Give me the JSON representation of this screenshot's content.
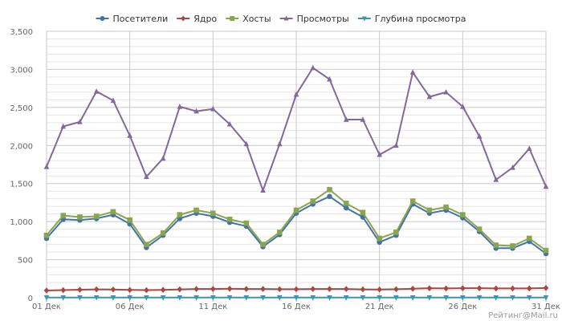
{
  "chart_data": {
    "type": "line",
    "x": [
      "01 Дек",
      "02 Дек",
      "03 Дек",
      "04 Дек",
      "05 Дек",
      "06 Дек",
      "07 Дек",
      "08 Дек",
      "09 Дек",
      "10 Дек",
      "11 Дек",
      "12 Дек",
      "13 Дек",
      "14 Дек",
      "15 Дек",
      "16 Дек",
      "17 Дек",
      "18 Дек",
      "19 Дек",
      "20 Дек",
      "21 Дек",
      "22 Дек",
      "23 Дек",
      "24 Дек",
      "25 Дек",
      "26 Дек",
      "27 Дек",
      "28 Дек",
      "29 Дек",
      "30 Дек",
      "31 Дек"
    ],
    "x_tick_labels": [
      "01 Дек",
      "06 Дек",
      "11 Дек",
      "16 Дек",
      "21 Дек",
      "26 Дек",
      "31 Дек"
    ],
    "ylim": [
      0,
      3500
    ],
    "y_ticks": [
      0,
      500,
      1000,
      1500,
      2000,
      2500,
      3000,
      3500
    ],
    "y_tick_labels": [
      "0",
      "500",
      "1,000",
      "1,500",
      "2,000",
      "2,500",
      "3,000",
      "3,500"
    ],
    "grid": "on",
    "legend_position": "top-center",
    "credit": "Рейтинг@Mail.ru",
    "series": [
      {
        "name": "Посетители",
        "color": "#4572A7",
        "marker": "circle",
        "values": [
          780,
          1030,
          1020,
          1040,
          1090,
          970,
          660,
          820,
          1040,
          1110,
          1070,
          990,
          940,
          670,
          830,
          1110,
          1230,
          1330,
          1180,
          1060,
          730,
          820,
          1230,
          1110,
          1150,
          1050,
          870,
          650,
          650,
          740,
          580
        ]
      },
      {
        "name": "Ядро",
        "color": "#AA4643",
        "marker": "diamond",
        "values": [
          95,
          100,
          105,
          110,
          108,
          102,
          100,
          103,
          110,
          115,
          115,
          118,
          115,
          115,
          112,
          112,
          115,
          115,
          115,
          110,
          108,
          112,
          118,
          125,
          122,
          125,
          125,
          122,
          122,
          122,
          128
        ]
      },
      {
        "name": "Хосты",
        "color": "#89A54E",
        "marker": "square",
        "values": [
          820,
          1080,
          1060,
          1070,
          1130,
          1020,
          700,
          850,
          1090,
          1150,
          1110,
          1030,
          980,
          700,
          860,
          1150,
          1270,
          1420,
          1240,
          1120,
          780,
          860,
          1270,
          1150,
          1190,
          1090,
          900,
          690,
          680,
          780,
          620
        ]
      },
      {
        "name": "Просмотры",
        "color": "#80699B",
        "marker": "triangle",
        "values": [
          1720,
          2250,
          2310,
          2710,
          2590,
          2130,
          1590,
          1830,
          2510,
          2450,
          2480,
          2280,
          2020,
          1410,
          2020,
          2670,
          3020,
          2870,
          2340,
          2340,
          1880,
          2000,
          2960,
          2640,
          2700,
          2510,
          2120,
          1550,
          1710,
          1960,
          1460
        ]
      },
      {
        "name": "Глубина просмотра",
        "color": "#3D96AE",
        "marker": "triangle-down",
        "values": [
          2.2,
          2.2,
          2.3,
          2.6,
          2.4,
          2.2,
          2.4,
          2.2,
          2.4,
          2.2,
          2.3,
          2.3,
          2.2,
          2.1,
          2.4,
          2.4,
          2.5,
          2.2,
          2.0,
          2.2,
          2.6,
          2.4,
          2.4,
          2.4,
          2.3,
          2.4,
          2.4,
          2.4,
          2.6,
          2.6,
          2.5
        ]
      }
    ]
  }
}
